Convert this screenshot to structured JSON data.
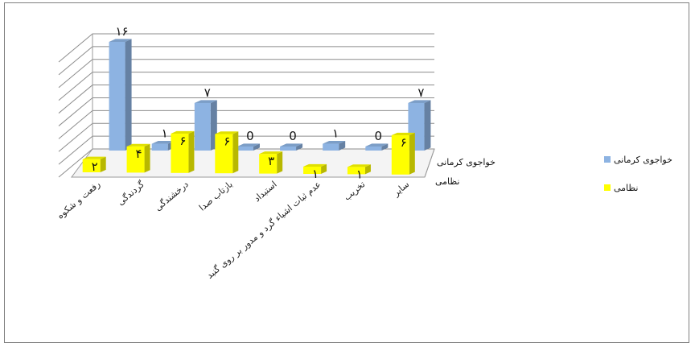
{
  "chart_data": {
    "type": "bar",
    "style": "3d-column",
    "categories": [
      "رفعت و شکوه",
      "گردندگی",
      "درخشندگی",
      "بازتاب صدا",
      "استبداد",
      "عدم ثبات اشیاء گرد و مدور بر روی گنبد",
      "تخریب",
      "سایر"
    ],
    "series": [
      {
        "name": "خواجوی کرمانی",
        "color": "#8db3e2",
        "values": [
          16,
          1,
          7,
          0,
          0,
          1,
          0,
          7
        ],
        "labels": [
          "۱۶",
          "۱",
          "۷",
          "0",
          "0",
          "۱",
          "0",
          "۷"
        ]
      },
      {
        "name": "نظامی",
        "color": "#ffff00",
        "values": [
          2,
          4,
          6,
          6,
          3,
          1,
          1,
          6
        ],
        "labels": [
          "۲",
          "۴",
          "۶",
          "۶",
          "۳",
          "۱",
          "۱",
          "۶"
        ]
      }
    ],
    "ylim": [
      0,
      16
    ],
    "gridlines": true,
    "legend_position": "right"
  }
}
